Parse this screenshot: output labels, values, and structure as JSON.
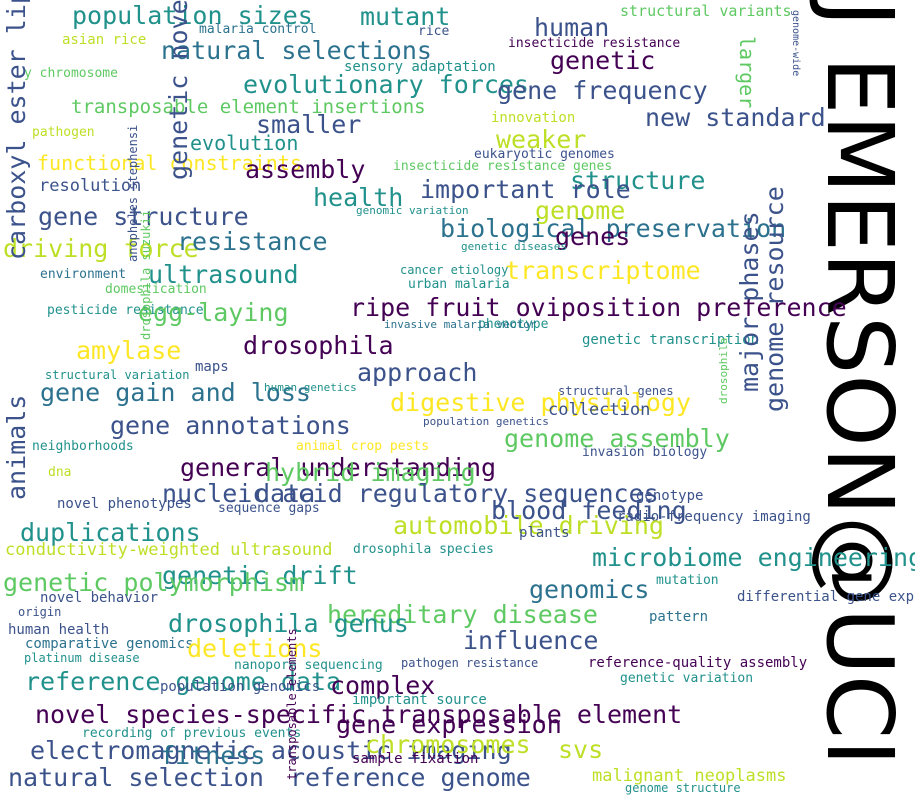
{
  "title": "J EMERSON@UCI",
  "colors": {
    "background": "#ffffff",
    "title": "#000000",
    "palette": [
      "#440154",
      "#3b528b",
      "#21918c",
      "#5ec962",
      "#fde725"
    ]
  },
  "words": [
    {
      "text": "population sizes",
      "color": "#21918c"
    },
    {
      "text": "mutant",
      "color": "#21918c"
    },
    {
      "text": "human",
      "color": "#3b528b"
    },
    {
      "text": "structural variants",
      "color": "#5ec962"
    },
    {
      "text": "asian rice",
      "color": "#bddf26"
    },
    {
      "text": "malaria control",
      "color": "#2c728e"
    },
    {
      "text": "rice",
      "color": "#3b528b"
    },
    {
      "text": "insecticide resistance",
      "color": "#440154"
    },
    {
      "text": "natural selections",
      "color": "#2c728e"
    },
    {
      "text": "genetic",
      "color": "#440154"
    },
    {
      "text": "larger",
      "color": "#5ec962"
    },
    {
      "text": "y chromosome",
      "color": "#5ec962"
    },
    {
      "text": "sensory adaptation",
      "color": "#21918c"
    },
    {
      "text": "evolutionary forces",
      "color": "#21918c"
    },
    {
      "text": "gene frequency",
      "color": "#3b528b"
    },
    {
      "text": "genome-wide",
      "color": "#3b528b"
    },
    {
      "text": "transposable element insertions",
      "color": "#5ec962"
    },
    {
      "text": "smaller",
      "color": "#3b528b"
    },
    {
      "text": "innovation",
      "color": "#bddf26"
    },
    {
      "text": "new standard",
      "color": "#3b528b"
    },
    {
      "text": "pathogen",
      "color": "#bddf26"
    },
    {
      "text": "weaker",
      "color": "#bddf26"
    },
    {
      "text": "evolution",
      "color": "#21918c"
    },
    {
      "text": "eukaryotic genomes",
      "color": "#3b528b"
    },
    {
      "text": "insecticide resistance genes",
      "color": "#5ec962"
    },
    {
      "text": "functional constraints",
      "color": "#fde725"
    },
    {
      "text": "assembly",
      "color": "#440154"
    },
    {
      "text": "structure",
      "color": "#21918c"
    },
    {
      "text": "resolution",
      "color": "#3b528b"
    },
    {
      "text": "important role",
      "color": "#3b528b"
    },
    {
      "text": "health",
      "color": "#21918c"
    },
    {
      "text": "genome",
      "color": "#bddf26"
    },
    {
      "text": "gene structure",
      "color": "#3b528b"
    },
    {
      "text": "genomic variation",
      "color": "#21918c"
    },
    {
      "text": "biological preservation",
      "color": "#2c728e"
    },
    {
      "text": "genes",
      "color": "#440154"
    },
    {
      "text": "driving force",
      "color": "#bddf26"
    },
    {
      "text": "resistance",
      "color": "#2c728e"
    },
    {
      "text": "genetic diseases",
      "color": "#21918c"
    },
    {
      "text": "transcriptome",
      "color": "#fde725"
    },
    {
      "text": "environment",
      "color": "#2c728e"
    },
    {
      "text": "ultrasound",
      "color": "#21918c"
    },
    {
      "text": "cancer etiology",
      "color": "#21918c"
    },
    {
      "text": "domestication",
      "color": "#5ec962"
    },
    {
      "text": "urban malaria",
      "color": "#21918c"
    },
    {
      "text": "ripe fruit oviposition preference",
      "color": "#440154"
    },
    {
      "text": "pesticide resistance",
      "color": "#21918c"
    },
    {
      "text": "egg-laying",
      "color": "#5ec962"
    },
    {
      "text": "phenotype",
      "color": "#21918c"
    },
    {
      "text": "invasive malaria vector",
      "color": "#2c728e"
    },
    {
      "text": "amylase",
      "color": "#fde725"
    },
    {
      "text": "drosophila",
      "color": "#440154"
    },
    {
      "text": "genetic transcription",
      "color": "#21918c"
    },
    {
      "text": "major phases",
      "color": "#3b528b"
    },
    {
      "text": "maps",
      "color": "#3b528b"
    },
    {
      "text": "approach",
      "color": "#3b528b"
    },
    {
      "text": "structural variation",
      "color": "#21918c"
    },
    {
      "text": "gene gain and loss",
      "color": "#2c728e"
    },
    {
      "text": "human genetics",
      "color": "#21918c"
    },
    {
      "text": "structural genes",
      "color": "#3b528b"
    },
    {
      "text": "digestive physiology",
      "color": "#fde725"
    },
    {
      "text": "collection",
      "color": "#3b528b"
    },
    {
      "text": "gene annotations",
      "color": "#3b528b"
    },
    {
      "text": "population genetics",
      "color": "#3b528b"
    },
    {
      "text": "genome assembly",
      "color": "#5ec962"
    },
    {
      "text": "neighborhoods",
      "color": "#21918c"
    },
    {
      "text": "animal crop pests",
      "color": "#fde725"
    },
    {
      "text": "invasion biology",
      "color": "#3b528b"
    },
    {
      "text": "general understanding",
      "color": "#440154"
    },
    {
      "text": "dna",
      "color": "#bddf26"
    },
    {
      "text": "hybrid imaging",
      "color": "#5ec962"
    },
    {
      "text": "nucleic acid regulatory sequences",
      "color": "#3b528b"
    },
    {
      "text": "data",
      "color": "#3b528b"
    },
    {
      "text": "blood feeding",
      "color": "#3b528b"
    },
    {
      "text": "genotype",
      "color": "#3b528b"
    },
    {
      "text": "novel phenotypes",
      "color": "#3b528b"
    },
    {
      "text": "sequence gaps",
      "color": "#3b528b"
    },
    {
      "text": "radio-frequency imaging",
      "color": "#3b528b"
    },
    {
      "text": "duplications",
      "color": "#21918c"
    },
    {
      "text": "automobile driving",
      "color": "#bddf26"
    },
    {
      "text": "plants",
      "color": "#3b528b"
    },
    {
      "text": "conductivity-weighted ultrasound",
      "color": "#bddf26"
    },
    {
      "text": "drosophila species",
      "color": "#21918c"
    },
    {
      "text": "microbiome engineering",
      "color": "#21918c"
    },
    {
      "text": "genetic drift",
      "color": "#21918c"
    },
    {
      "text": "genetic polymorphism",
      "color": "#5ec962"
    },
    {
      "text": "genomics",
      "color": "#2c728e"
    },
    {
      "text": "mutation",
      "color": "#21918c"
    },
    {
      "text": "novel behavior",
      "color": "#3b528b"
    },
    {
      "text": "differential gene expression",
      "color": "#3b528b"
    },
    {
      "text": "origin",
      "color": "#3b528b"
    },
    {
      "text": "hereditary disease",
      "color": "#5ec962"
    },
    {
      "text": "drosophila genus",
      "color": "#21918c"
    },
    {
      "text": "pattern",
      "color": "#2c728e"
    },
    {
      "text": "human health",
      "color": "#3b528b"
    },
    {
      "text": "influence",
      "color": "#3b528b"
    },
    {
      "text": "comparative genomics",
      "color": "#2c728e"
    },
    {
      "text": "deletions",
      "color": "#fde725"
    },
    {
      "text": "platinum disease",
      "color": "#21918c"
    },
    {
      "text": "nanopore sequencing",
      "color": "#21918c"
    },
    {
      "text": "pathogen resistance",
      "color": "#3b528b"
    },
    {
      "text": "reference-quality assembly",
      "color": "#440154"
    },
    {
      "text": "reference genome data",
      "color": "#21918c"
    },
    {
      "text": "complex",
      "color": "#440154"
    },
    {
      "text": "genetic variation",
      "color": "#21918c"
    },
    {
      "text": "population genomics",
      "color": "#3b528b"
    },
    {
      "text": "important source",
      "color": "#21918c"
    },
    {
      "text": "novel species-specific transposable element",
      "color": "#440154"
    },
    {
      "text": "gene expression",
      "color": "#440154"
    },
    {
      "text": "recording of previous events",
      "color": "#21918c"
    },
    {
      "text": "electromagnetic acoustic imaging",
      "color": "#3b528b"
    },
    {
      "text": "fitness",
      "color": "#2c728e"
    },
    {
      "text": "chromosomes",
      "color": "#bddf26"
    },
    {
      "text": "svs",
      "color": "#bddf26"
    },
    {
      "text": "sample fixation",
      "color": "#440154"
    },
    {
      "text": "natural selection",
      "color": "#3b528b"
    },
    {
      "text": "reference genome",
      "color": "#3b528b"
    },
    {
      "text": "malignant neoplasms",
      "color": "#bddf26"
    },
    {
      "text": "genome structure",
      "color": "#21918c"
    },
    {
      "text": "carboxyl ester lipase",
      "color": "#3b528b"
    },
    {
      "text": "genetic novelty",
      "color": "#3b528b"
    },
    {
      "text": "animals",
      "color": "#3b528b"
    },
    {
      "text": "genome resource",
      "color": "#3b528b"
    },
    {
      "text": "anopheles stephensi",
      "color": "#3b528b"
    },
    {
      "text": "drosophila suzukii",
      "color": "#5ec962"
    },
    {
      "text": "drosophila",
      "color": "#5ec962"
    },
    {
      "text": "transposable elements",
      "color": "#440154"
    },
    {
      "text": "drosophila",
      "color": "#21918c"
    }
  ]
}
